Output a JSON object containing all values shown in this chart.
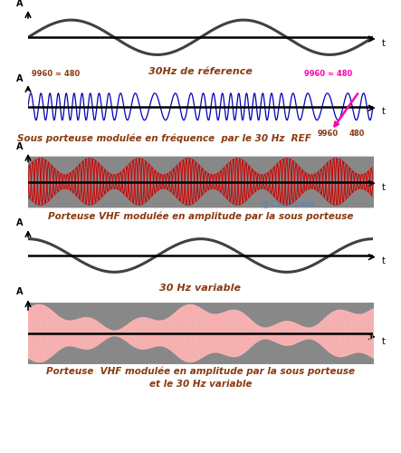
{
  "bg_color": "#ffffff",
  "title_color": "#8B3A0F",
  "arrow_color": "#FF00AA",
  "watermark": "@ L'avionnaira",
  "watermark_color": "#4488BB",
  "panel1": {
    "label": "30Hz de réference",
    "freq": 2.0,
    "color": "#404040",
    "linewidth": 2.2
  },
  "panel2": {
    "label": "Sous porteuse modulée en fréquence  par le 30 Hz  REF",
    "base_freq": 30.0,
    "mod_depth": 14.0,
    "ref_freq": 2.0,
    "color": "#0000BB",
    "linewidth": 0.9,
    "ann_left": "9960 ≈ 480",
    "ann_right_top": "9960 ≈ 480",
    "ann_right_bot1": "9960",
    "ann_right_bot2": "480"
  },
  "panel3": {
    "label": "Porteuse VHF modulée en amplitude par la sous porteuse",
    "carrier_freq": 55.0,
    "mod_freq": 7.0,
    "mod_depth": 0.55,
    "line_color": "#CC0000",
    "fill_color": "#888888",
    "linewidth": 0.8
  },
  "panel4": {
    "label": "30 Hz variable",
    "freq": 2.0,
    "phase": 1.57,
    "color": "#404040",
    "linewidth": 2.2
  },
  "panel5": {
    "label": "Porteuse  VHF modulée en amplitude par la sous porteuse",
    "label2": "et le 30 Hz variable",
    "carrier_freq": 55.0,
    "mod_freq1": 7.0,
    "mod_freq2": 2.0,
    "mod_depth1": 0.3,
    "mod_depth2": 0.55,
    "phase2": 1.57,
    "line_color": "#FFB0B0",
    "fill_color": "#888888",
    "linewidth": 0.8
  }
}
